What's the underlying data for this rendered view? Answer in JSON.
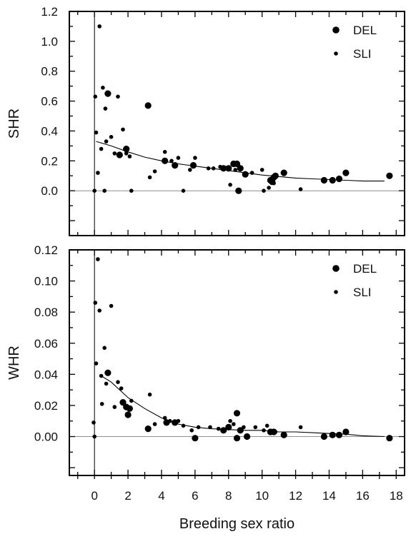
{
  "chart_data": [
    {
      "type": "scatter",
      "ylabel": "SHR",
      "xlim": [
        -1.5,
        18.5
      ],
      "ylim": [
        -0.3,
        1.2
      ],
      "yticks": [
        0.0,
        0.2,
        0.4,
        0.6,
        0.8,
        1.0,
        1.2
      ],
      "ytick_labels": [
        "0.0",
        "0.2",
        "0.4",
        "0.6",
        "0.8",
        "1.0",
        "1.2"
      ],
      "reference_lines": {
        "x": 0,
        "y": 0
      },
      "legend_position": "top-right",
      "series": [
        {
          "name": "DEL",
          "marker": "large-dot",
          "points": [
            [
              0.8,
              0.65
            ],
            [
              1.5,
              0.24
            ],
            [
              1.9,
              0.28
            ],
            [
              3.2,
              0.57
            ],
            [
              4.2,
              0.2
            ],
            [
              4.8,
              0.17
            ],
            [
              5.9,
              0.17
            ],
            [
              7.7,
              0.15
            ],
            [
              8.0,
              0.15
            ],
            [
              8.3,
              0.18
            ],
            [
              8.5,
              0.18
            ],
            [
              8.6,
              0.0
            ],
            [
              8.7,
              0.15
            ],
            [
              9.0,
              0.11
            ],
            [
              10.5,
              0.07
            ],
            [
              10.6,
              0.06
            ],
            [
              10.7,
              0.09
            ],
            [
              10.8,
              0.1
            ],
            [
              11.3,
              0.12
            ],
            [
              13.7,
              0.07
            ],
            [
              14.2,
              0.07
            ],
            [
              14.6,
              0.08
            ],
            [
              15.0,
              0.12
            ],
            [
              17.6,
              0.1
            ]
          ]
        },
        {
          "name": "SLI",
          "marker": "small-dot",
          "points": [
            [
              0.0,
              0.0
            ],
            [
              0.05,
              0.63
            ],
            [
              0.1,
              0.39
            ],
            [
              0.2,
              0.12
            ],
            [
              0.3,
              1.1
            ],
            [
              0.4,
              0.28
            ],
            [
              0.5,
              0.69
            ],
            [
              0.6,
              0.0
            ],
            [
              0.65,
              0.55
            ],
            [
              0.7,
              0.33
            ],
            [
              1.0,
              0.36
            ],
            [
              1.2,
              0.25
            ],
            [
              1.4,
              0.63
            ],
            [
              1.7,
              0.41
            ],
            [
              1.9,
              0.25
            ],
            [
              2.1,
              0.23
            ],
            [
              2.2,
              0.0
            ],
            [
              3.3,
              0.09
            ],
            [
              3.6,
              0.13
            ],
            [
              4.2,
              0.26
            ],
            [
              4.6,
              0.2
            ],
            [
              5.0,
              0.22
            ],
            [
              5.3,
              0.0
            ],
            [
              5.7,
              0.14
            ],
            [
              6.0,
              0.22
            ],
            [
              6.8,
              0.15
            ],
            [
              7.1,
              0.15
            ],
            [
              7.5,
              0.16
            ],
            [
              8.1,
              0.04
            ],
            [
              8.4,
              0.14
            ],
            [
              9.4,
              0.12
            ],
            [
              10.0,
              0.14
            ],
            [
              10.1,
              0.0
            ],
            [
              10.4,
              0.02
            ],
            [
              10.7,
              0.05
            ],
            [
              12.3,
              0.01
            ]
          ]
        }
      ],
      "trend_line": [
        [
          0.1,
          0.33
        ],
        [
          1.0,
          0.3
        ],
        [
          2.0,
          0.26
        ],
        [
          3.0,
          0.225
        ],
        [
          4.0,
          0.2
        ],
        [
          5.0,
          0.18
        ],
        [
          6.0,
          0.165
        ],
        [
          7.0,
          0.15
        ],
        [
          8.0,
          0.135
        ],
        [
          9.0,
          0.12
        ],
        [
          10.0,
          0.105
        ],
        [
          11.0,
          0.095
        ],
        [
          12.0,
          0.085
        ],
        [
          13.0,
          0.08
        ],
        [
          14.0,
          0.075
        ],
        [
          15.0,
          0.07
        ],
        [
          16.0,
          0.065
        ],
        [
          17.3,
          0.065
        ]
      ]
    },
    {
      "type": "scatter",
      "xlabel": "Breeding sex ratio",
      "ylabel": "WHR",
      "xlim": [
        -1.5,
        18.5
      ],
      "ylim": [
        -0.025,
        0.12
      ],
      "xticks": [
        0,
        2,
        4,
        6,
        8,
        10,
        12,
        14,
        16,
        18
      ],
      "xtick_labels": [
        "0",
        "2",
        "4",
        "6",
        "8",
        "10",
        "12",
        "14",
        "16",
        "18"
      ],
      "yticks": [
        0.0,
        0.02,
        0.04,
        0.06,
        0.08,
        0.1,
        0.12
      ],
      "ytick_labels": [
        "0.00",
        "0.02",
        "0.04",
        "0.06",
        "0.08",
        "0.10",
        "0.12"
      ],
      "reference_lines": {
        "x": 0,
        "y": 0
      },
      "legend_position": "top-right",
      "series": [
        {
          "name": "DEL",
          "marker": "large-dot",
          "points": [
            [
              0.8,
              0.041
            ],
            [
              1.7,
              0.022
            ],
            [
              1.9,
              0.019
            ],
            [
              2.1,
              0.018
            ],
            [
              2.0,
              0.014
            ],
            [
              3.2,
              0.005
            ],
            [
              4.3,
              0.009
            ],
            [
              4.8,
              0.009
            ],
            [
              6.0,
              -0.001
            ],
            [
              7.7,
              0.004
            ],
            [
              8.0,
              0.006
            ],
            [
              8.5,
              0.015
            ],
            [
              8.5,
              -0.001
            ],
            [
              8.7,
              0.004
            ],
            [
              9.1,
              0.0
            ],
            [
              10.5,
              0.003
            ],
            [
              10.7,
              0.003
            ],
            [
              11.3,
              0.001
            ],
            [
              13.7,
              0.0
            ],
            [
              14.2,
              0.001
            ],
            [
              14.6,
              0.001
            ],
            [
              15.0,
              0.003
            ],
            [
              17.6,
              -0.001
            ]
          ]
        },
        {
          "name": "SLI",
          "marker": "small-dot",
          "points": [
            [
              -0.05,
              0.009
            ],
            [
              0.0,
              0.0
            ],
            [
              0.05,
              0.086
            ],
            [
              0.1,
              0.047
            ],
            [
              0.2,
              0.114
            ],
            [
              0.3,
              0.081
            ],
            [
              0.4,
              0.039
            ],
            [
              0.45,
              0.021
            ],
            [
              0.6,
              0.057
            ],
            [
              0.7,
              0.034
            ],
            [
              1.0,
              0.084
            ],
            [
              1.2,
              0.019
            ],
            [
              1.4,
              0.035
            ],
            [
              1.6,
              0.031
            ],
            [
              2.2,
              0.023
            ],
            [
              3.3,
              0.027
            ],
            [
              3.6,
              0.008
            ],
            [
              4.2,
              0.012
            ],
            [
              4.5,
              0.01
            ],
            [
              5.0,
              0.01
            ],
            [
              5.3,
              0.007
            ],
            [
              5.8,
              0.004
            ],
            [
              6.2,
              0.006
            ],
            [
              6.9,
              0.006
            ],
            [
              7.4,
              0.005
            ],
            [
              8.1,
              0.01
            ],
            [
              8.3,
              0.008
            ],
            [
              8.9,
              0.006
            ],
            [
              9.6,
              0.006
            ],
            [
              10.1,
              0.004
            ],
            [
              10.3,
              0.007
            ],
            [
              10.8,
              0.003
            ],
            [
              12.3,
              0.006
            ]
          ]
        }
      ],
      "trend_line": [
        [
          0.4,
          0.039
        ],
        [
          1.0,
          0.035
        ],
        [
          2.0,
          0.025
        ],
        [
          3.0,
          0.018
        ],
        [
          4.0,
          0.012
        ],
        [
          5.0,
          0.008
        ],
        [
          6.0,
          0.006
        ],
        [
          7.0,
          0.005
        ],
        [
          8.0,
          0.0045
        ],
        [
          9.0,
          0.004
        ],
        [
          10.0,
          0.004
        ],
        [
          11.0,
          0.003
        ],
        [
          12.0,
          0.003
        ],
        [
          13.0,
          0.0025
        ],
        [
          14.0,
          0.002
        ],
        [
          15.0,
          0.0015
        ],
        [
          16.0,
          0.0005
        ],
        [
          17.3,
          0.0
        ]
      ]
    }
  ]
}
